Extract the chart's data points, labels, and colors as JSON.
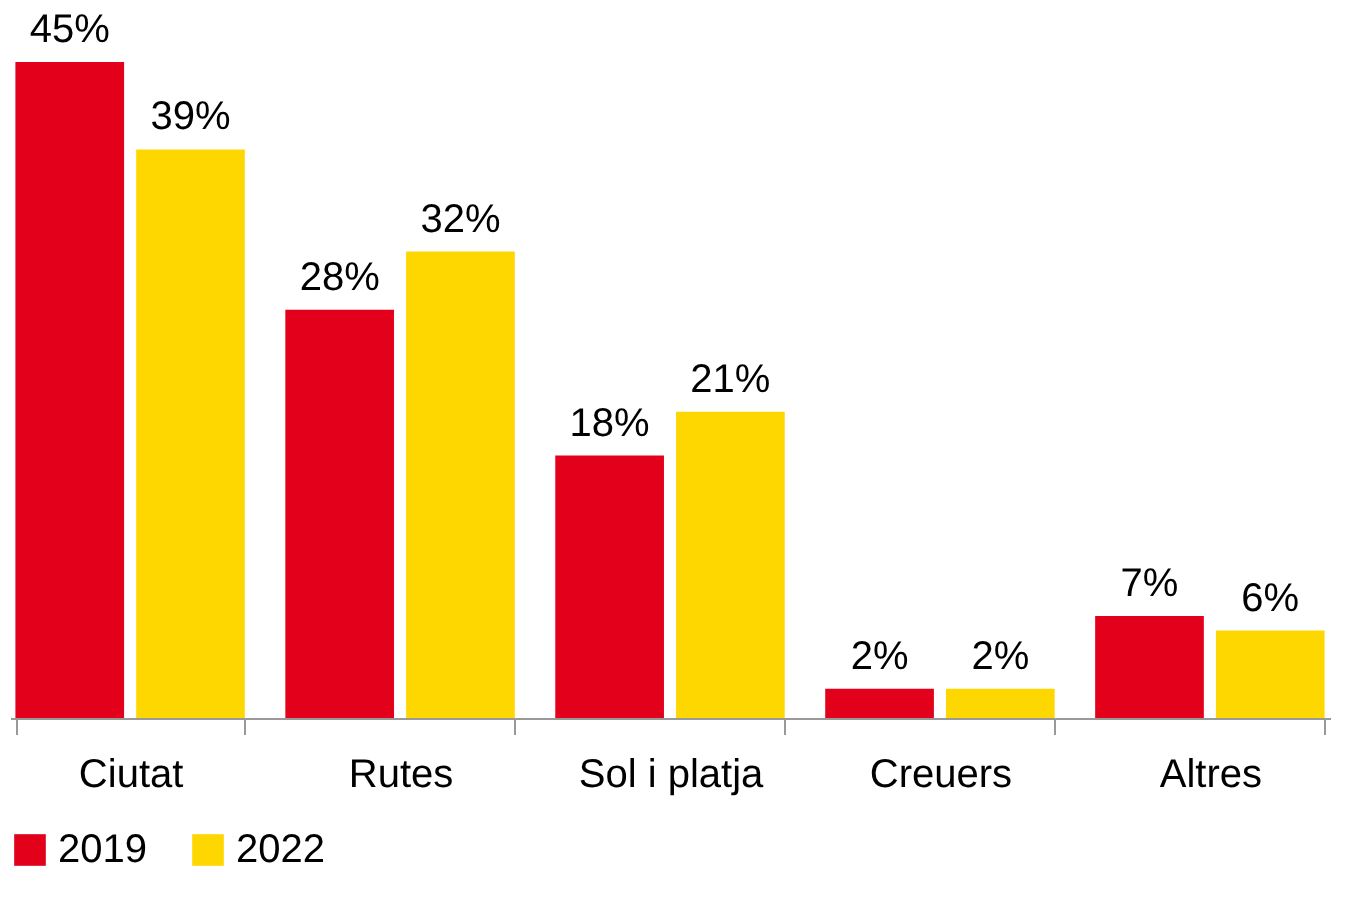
{
  "chart_data": {
    "type": "bar",
    "categories": [
      "Ciutat",
      "Rutes",
      "Sol i platja",
      "Creuers",
      "Altres"
    ],
    "series": [
      {
        "name": "2019",
        "color": "#e3001b",
        "values": [
          45,
          28,
          18,
          2,
          7
        ],
        "value_labels": [
          "45%",
          "28%",
          "18%",
          "2%",
          "7%"
        ]
      },
      {
        "name": "2022",
        "color": "#ffd700",
        "values": [
          39,
          32,
          21,
          2,
          6
        ],
        "value_labels": [
          "39%",
          "32%",
          "21%",
          "2%",
          "6%"
        ]
      }
    ],
    "legend": "bottom",
    "grid": false,
    "tick_labels": "x"
  }
}
